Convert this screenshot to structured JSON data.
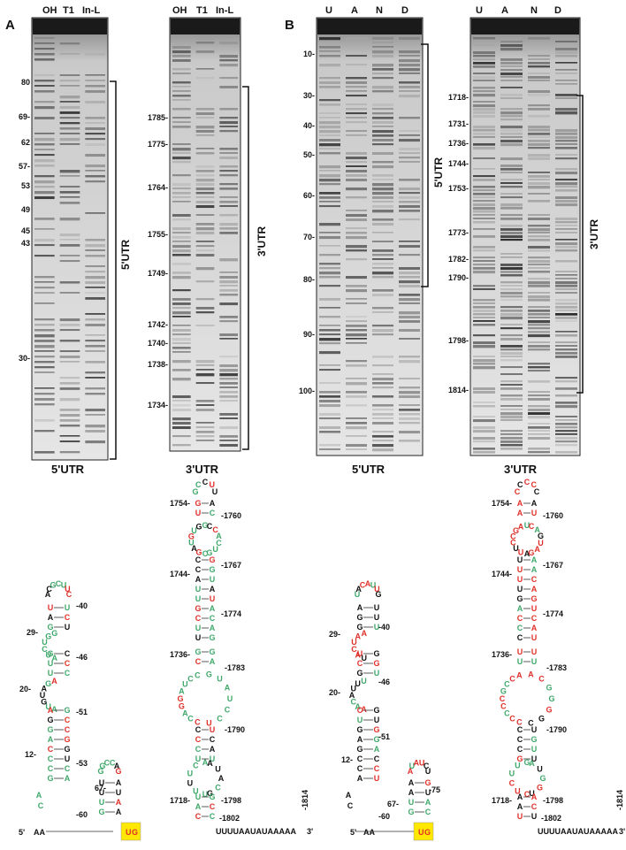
{
  "colors": {
    "black": "#111111",
    "green": "#3fa86a",
    "red": "#e0302a",
    "highlight": "#ffe800"
  },
  "panels": [
    {
      "letter": "A",
      "gels": [
        {
          "lanes": [
            "OH",
            "T1",
            "In-L"
          ],
          "caption": "5'UTR",
          "bracket_label": "5'UTR",
          "markers": [
            {
              "label": "80",
              "y": 92
            },
            {
              "label": "69-",
              "y": 131
            },
            {
              "label": "62",
              "y": 160
            },
            {
              "label": "57-",
              "y": 187
            },
            {
              "label": "53",
              "y": 209
            },
            {
              "label": "49",
              "y": 236
            },
            {
              "label": "45",
              "y": 260
            },
            {
              "label": "43",
              "y": 274
            },
            {
              "label": "30-",
              "y": 404
            }
          ]
        },
        {
          "lanes": [
            "OH",
            "T1",
            "In-L"
          ],
          "caption": "3'UTR",
          "bracket_label": "3'UTR",
          "markers": [
            {
              "label": "1785-",
              "y": 132
            },
            {
              "label": "1775-",
              "y": 162
            },
            {
              "label": "1764-",
              "y": 211
            },
            {
              "label": "1755-",
              "y": 264
            },
            {
              "label": "1749-",
              "y": 308
            },
            {
              "label": "1742-",
              "y": 366
            },
            {
              "label": "1740-",
              "y": 387
            },
            {
              "label": "1738-",
              "y": 411
            },
            {
              "label": "1734-",
              "y": 457
            }
          ]
        }
      ]
    },
    {
      "letter": "B",
      "gels": [
        {
          "lanes": [
            "U",
            "A",
            "N",
            "D"
          ],
          "caption": "5'UTR",
          "bracket_label": "5'UTR",
          "markers": [
            {
              "label": "10-",
              "y": 60
            },
            {
              "label": "30-",
              "y": 107
            },
            {
              "label": "40-",
              "y": 141
            },
            {
              "label": "50-",
              "y": 174
            },
            {
              "label": "60-",
              "y": 220
            },
            {
              "label": "70-",
              "y": 267
            },
            {
              "label": "80-",
              "y": 315
            },
            {
              "label": "90-",
              "y": 377
            },
            {
              "label": "100-",
              "y": 441
            }
          ]
        },
        {
          "lanes": [
            "U",
            "A",
            "N",
            "D"
          ],
          "caption": "3'UTR",
          "bracket_label": "3'UTR",
          "markers": [
            {
              "label": "1718-",
              "y": 109
            },
            {
              "label": "1731-",
              "y": 139
            },
            {
              "label": "1736-",
              "y": 161
            },
            {
              "label": "1744-",
              "y": 184
            },
            {
              "label": "1753-",
              "y": 212
            },
            {
              "label": "1773-",
              "y": 262
            },
            {
              "label": "1782-",
              "y": 292
            },
            {
              "label": "1790-",
              "y": 313
            },
            {
              "label": "1798-",
              "y": 384
            },
            {
              "label": "1814-",
              "y": 440
            }
          ]
        }
      ]
    }
  ],
  "structures": {
    "five_prime": {
      "end5": "5'",
      "tail": "AA",
      "start_codon": [
        "U",
        "G"
      ],
      "positions": [
        "-40",
        "29-",
        "-46",
        "20-",
        "-51",
        "12-",
        "-53",
        "67-",
        "-60",
        "-75"
      ]
    },
    "three_prime": {
      "end3": "3'",
      "positions": [
        "1754-",
        "-1760",
        "1744-",
        "-1767",
        "-1774",
        "1736-",
        "-1783",
        "-1790",
        "1718-",
        "-1798",
        "-1802",
        "-1814"
      ],
      "tail_text": "UUUUAAUAUAAAAA"
    }
  }
}
